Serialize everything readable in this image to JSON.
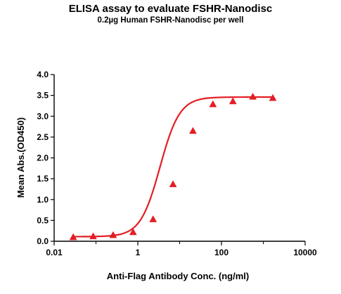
{
  "chart_data": {
    "type": "scatter",
    "title": "ELISA assay to evaluate FSHR-Nanodisc",
    "subtitle": "0.2µg Human FSHR-Nanodisc per well",
    "xlabel": "Anti-Flag Antibody Conc. (ng/ml)",
    "ylabel": "Mean Abs.(OD450)",
    "x_scale": "log",
    "xlim": [
      0.01,
      10000
    ],
    "ylim": [
      0.0,
      4.0
    ],
    "x_ticks": [
      0.01,
      1,
      100,
      10000
    ],
    "x_tick_labels": [
      "0.01",
      "1",
      "100",
      "10000"
    ],
    "y_ticks": [
      0.0,
      0.5,
      1.0,
      1.5,
      2.0,
      2.5,
      3.0,
      3.5,
      4.0
    ],
    "y_tick_labels": [
      "0.0",
      "0.5",
      "1.0",
      "1.5",
      "2.0",
      "2.5",
      "3.0",
      "3.5",
      "4.0"
    ],
    "grid": false,
    "legend": "none",
    "series": [
      {
        "marker": "triangle",
        "color": "#e31e24",
        "x": [
          0.0286,
          0.0858,
          0.257,
          0.772,
          2.32,
          6.95,
          20.8,
          62.5,
          187.5,
          562.5,
          1687.5
        ],
        "y": [
          0.1,
          0.12,
          0.15,
          0.22,
          0.53,
          1.37,
          2.65,
          3.29,
          3.36,
          3.47,
          3.44
        ]
      }
    ],
    "fit_curve": {
      "model": "4PL",
      "color": "#e31e24",
      "bottom": 0.11,
      "top": 3.46,
      "ec50": 3.4,
      "hill": 1.85
    }
  }
}
